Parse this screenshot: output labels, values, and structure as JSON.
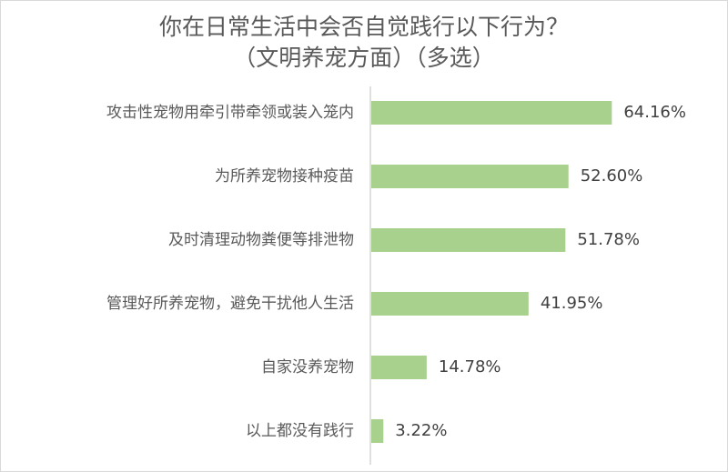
{
  "chart_data": {
    "type": "bar",
    "orientation": "horizontal",
    "title": "你在日常生活中会否自觉践行以下行为？\n（文明养宠方面）（多选）",
    "categories": [
      "攻击性宠物用牵引带牵领或装入笼内",
      "为所养宠物接种疫苗",
      "及时清理动物粪便等排泄物",
      "管理好所养宠物，避免干扰他人生活",
      "自家没养宠物",
      "以上都没有践行"
    ],
    "values": [
      64.16,
      52.6,
      51.78,
      41.95,
      14.78,
      3.22
    ],
    "value_labels": [
      "64.16%",
      "52.60%",
      "51.78%",
      "41.95%",
      "14.78%",
      "3.22%"
    ],
    "bar_color": "#a9d18e",
    "axis_color": "#bfbfbf",
    "xlim": [
      0,
      100
    ],
    "grid": false,
    "legend": "none"
  }
}
